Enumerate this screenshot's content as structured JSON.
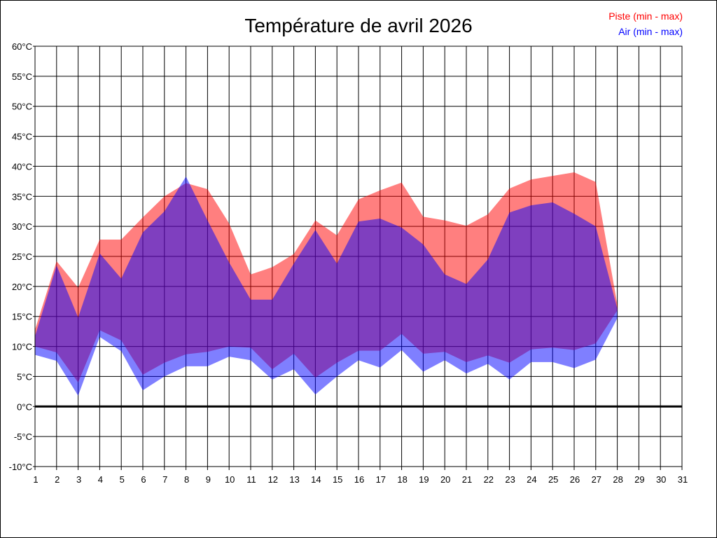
{
  "chart_data": {
    "type": "area",
    "title": "Température de avril 2026",
    "xlabel": "",
    "ylabel": "",
    "xlim": [
      1,
      31
    ],
    "ylim": [
      -10,
      60
    ],
    "grid": true,
    "legend_placement": "top-right",
    "x_ticks": [
      "1",
      "2",
      "3",
      "4",
      "5",
      "6",
      "7",
      "8",
      "9",
      "10",
      "11",
      "12",
      "13",
      "14",
      "15",
      "16",
      "17",
      "18",
      "19",
      "20",
      "21",
      "22",
      "23",
      "24",
      "25",
      "26",
      "27",
      "28",
      "29",
      "30",
      "31"
    ],
    "y_ticks": [
      {
        "value": 60,
        "label": "60°C"
      },
      {
        "value": 55,
        "label": "55°C"
      },
      {
        "value": 50,
        "label": "50°C"
      },
      {
        "value": 45,
        "label": "45°C"
      },
      {
        "value": 40,
        "label": "40°C"
      },
      {
        "value": 35,
        "label": "35°C"
      },
      {
        "value": 30,
        "label": "30°C"
      },
      {
        "value": 25,
        "label": "25°C"
      },
      {
        "value": 20,
        "label": "20°C"
      },
      {
        "value": 15,
        "label": "15°C"
      },
      {
        "value": 10,
        "label": "10°C"
      },
      {
        "value": 5,
        "label": "5°C"
      },
      {
        "value": 0,
        "label": "0°C"
      },
      {
        "value": -5,
        "label": "-5°C"
      },
      {
        "value": -10,
        "label": "-10°C"
      }
    ],
    "x": [
      1,
      2,
      3,
      4,
      5,
      6,
      7,
      8,
      9,
      10,
      11,
      12,
      13,
      14,
      15,
      16,
      17,
      18,
      19,
      20,
      21,
      22,
      23,
      24,
      25,
      26,
      27,
      28
    ],
    "series": [
      {
        "name": "Piste (min - max)",
        "color": "#ff0000",
        "max": [
          12.8,
          24.2,
          19.8,
          27.8,
          27.8,
          31.5,
          35,
          37.2,
          36.2,
          30.5,
          22,
          23.2,
          25.4,
          31,
          28.5,
          34.5,
          36,
          37.3,
          31.6,
          31,
          30.1,
          32,
          36.3,
          37.8,
          38.4,
          39,
          37.4,
          17
        ],
        "min": [
          10,
          9,
          4,
          12.7,
          11,
          5.3,
          7.3,
          8.7,
          9.1,
          10,
          9.8,
          6.2,
          8.8,
          4.8,
          7.3,
          9.3,
          9.3,
          12.1,
          8.8,
          9.1,
          7.4,
          8.5,
          7.3,
          9.5,
          9.8,
          9.4,
          10.5,
          16
        ]
      },
      {
        "name": "Air (min - max)",
        "color": "#0000ff",
        "max": [
          11.7,
          23.5,
          14.8,
          25.5,
          21.3,
          29,
          32.5,
          38.3,
          31,
          24,
          17.8,
          17.8,
          23.8,
          29.4,
          23.8,
          30.8,
          31.3,
          29.8,
          27,
          22,
          20.4,
          24.5,
          32.3,
          33.5,
          34,
          32.1,
          30,
          16.3
        ],
        "min": [
          8.6,
          7.6,
          1.8,
          11.6,
          9.2,
          2.7,
          5,
          6.7,
          6.7,
          8.3,
          7.7,
          4.5,
          6.2,
          2,
          5,
          7.7,
          6.5,
          9.4,
          5.8,
          7.7,
          5.5,
          7.1,
          4.5,
          7.4,
          7.4,
          6.4,
          7.8,
          14.7
        ]
      }
    ]
  }
}
